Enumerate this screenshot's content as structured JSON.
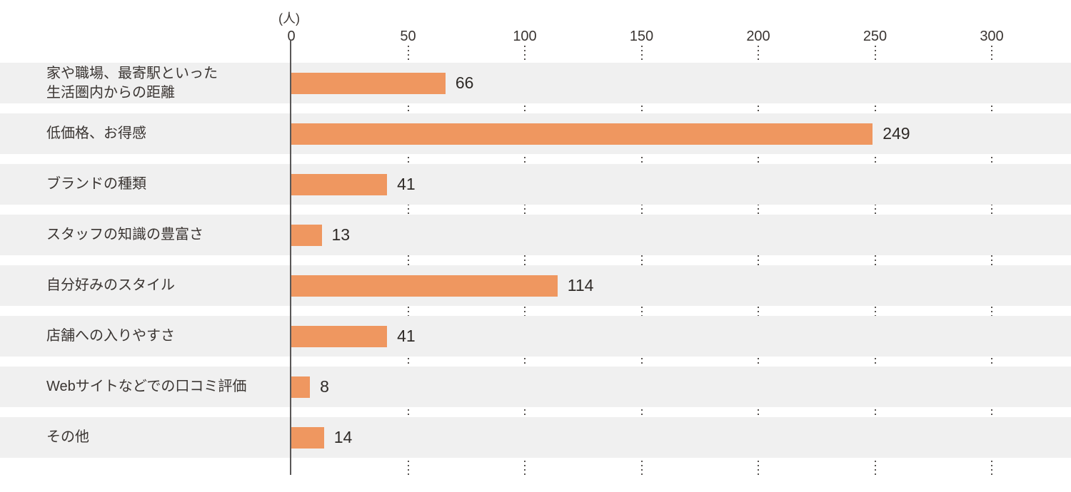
{
  "chart_data": {
    "type": "bar",
    "orientation": "horizontal",
    "title": "",
    "unit_label": "(人)",
    "xlabel": "",
    "ylabel": "",
    "xlim": [
      0,
      300
    ],
    "ticks": [
      0,
      50,
      100,
      150,
      200,
      250,
      300
    ],
    "grid": "dotted vertical lines, visible only in gaps between row bands",
    "legend": "none",
    "categories": [
      "家や職場、最寄駅といった\n生活圏内からの距離",
      "低価格、お得感",
      "ブランドの種類",
      "スタッフの知識の豊富さ",
      "自分好みのスタイル",
      "店舗への入りやすさ",
      "Webサイトなどでの口コミ評価",
      "その他"
    ],
    "values": [
      66,
      249,
      41,
      13,
      114,
      41,
      8,
      14
    ],
    "colors": {
      "bar": "#ef9760",
      "row_band": "#f0f0f0",
      "axis_line": "#595757",
      "grid_dots": "#575350",
      "text": "#3a3532"
    }
  }
}
